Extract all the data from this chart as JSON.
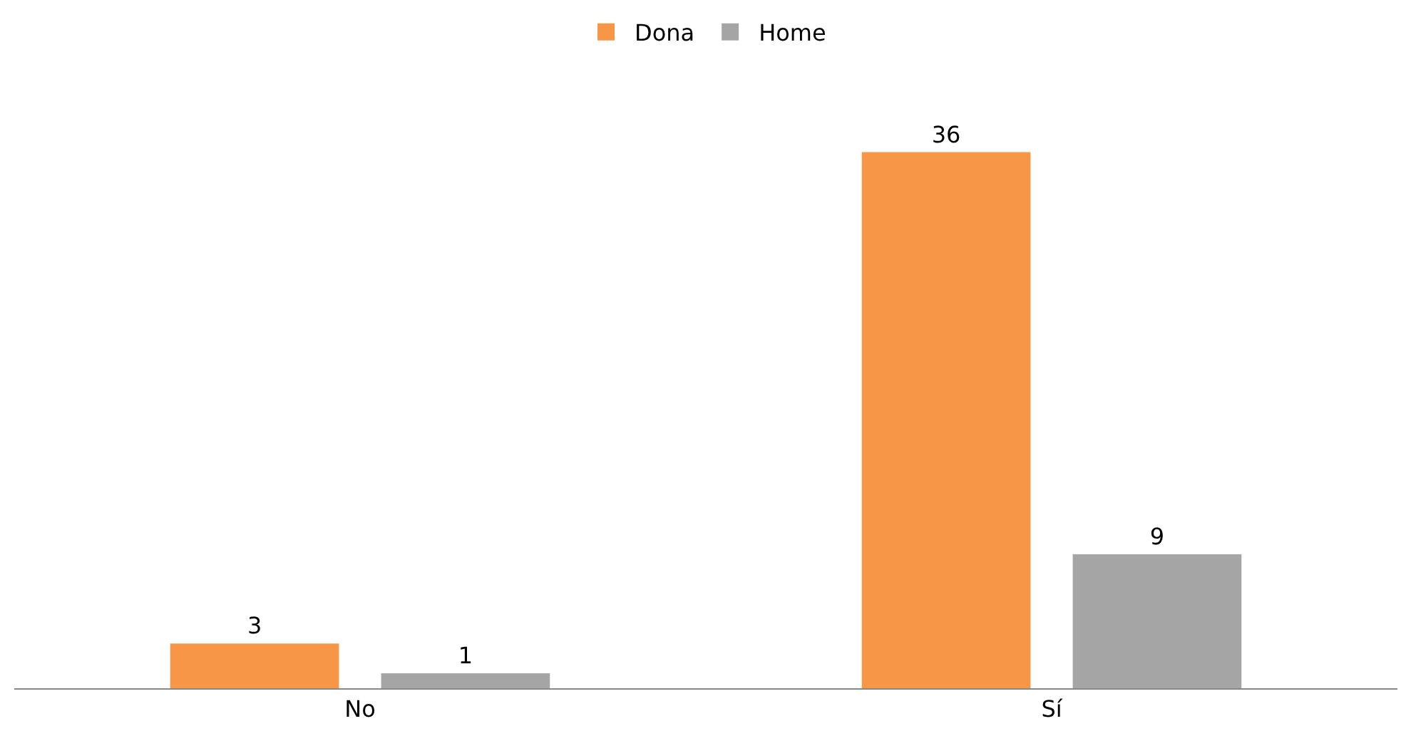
{
  "chart_data": {
    "type": "bar",
    "categories": [
      "No",
      "Sí"
    ],
    "series": [
      {
        "name": "Dona",
        "color": "#f79646",
        "values": [
          3,
          36
        ]
      },
      {
        "name": "Home",
        "color": "#a5a5a5",
        "values": [
          1,
          9
        ]
      }
    ],
    "data_labels": true,
    "legend": "top"
  }
}
